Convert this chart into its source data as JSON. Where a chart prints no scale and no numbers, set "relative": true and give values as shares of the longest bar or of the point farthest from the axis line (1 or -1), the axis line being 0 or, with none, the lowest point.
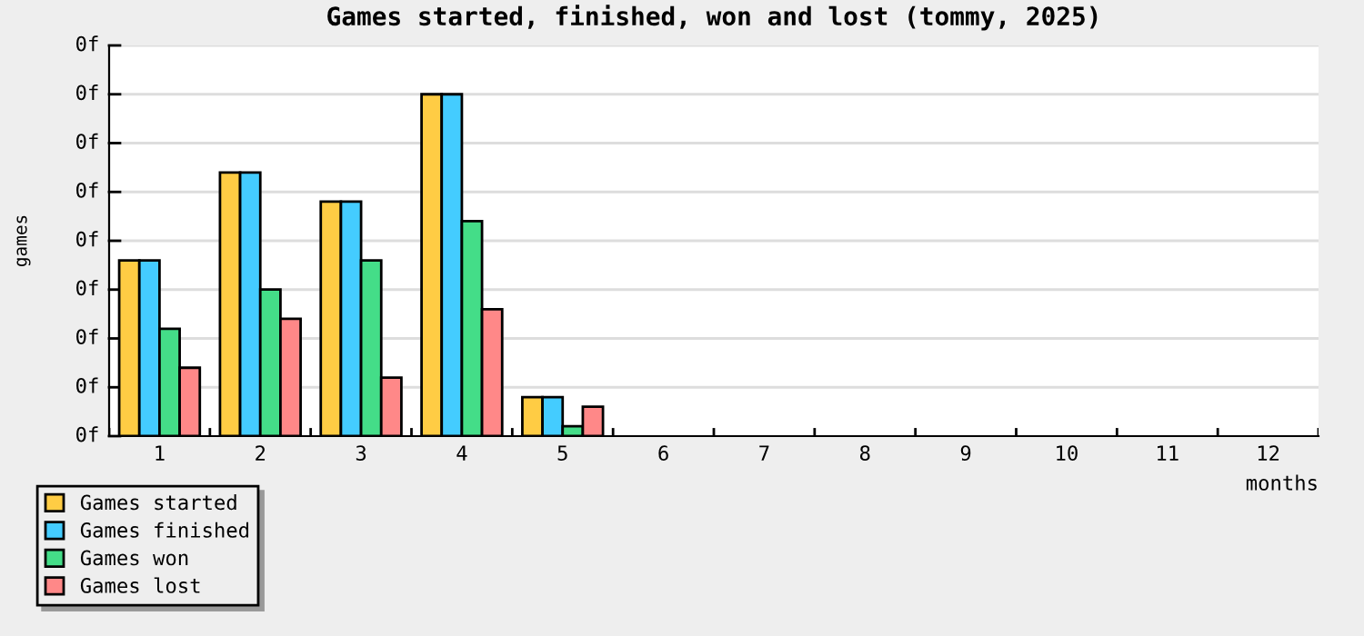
{
  "chart_data": {
    "type": "bar",
    "title": "Games started, finished, won and lost (tommy, 2025)",
    "xlabel": "months",
    "ylabel": "games",
    "relative": true,
    "categories": [
      "1",
      "2",
      "3",
      "4",
      "5",
      "6",
      "7",
      "8",
      "9",
      "10",
      "11",
      "12"
    ],
    "series": [
      {
        "name": "Games started",
        "color": "#ffcc44",
        "values": [
          0.514,
          0.771,
          0.686,
          1,
          0.114,
          null,
          null,
          null,
          null,
          null,
          null,
          null
        ]
      },
      {
        "name": "Games finished",
        "color": "#44ccff",
        "values": [
          0.514,
          0.771,
          0.686,
          1,
          0.114,
          null,
          null,
          null,
          null,
          null,
          null,
          null
        ]
      },
      {
        "name": "Games won",
        "color": "#44dd88",
        "values": [
          0.314,
          0.429,
          0.514,
          0.629,
          0.029,
          null,
          null,
          null,
          null,
          null,
          null,
          null
        ]
      },
      {
        "name": "Games lost",
        "color": "#ff8888",
        "values": [
          0.2,
          0.343,
          0.171,
          0.371,
          0.086,
          null,
          null,
          null,
          null,
          null,
          null,
          null
        ]
      }
    ],
    "annotations": [
      "0f",
      "0f",
      "0f",
      "0f",
      "0f",
      "0f",
      "0f",
      "0f",
      "0f"
    ],
    "grid": "y",
    "legend": "bottom left"
  }
}
